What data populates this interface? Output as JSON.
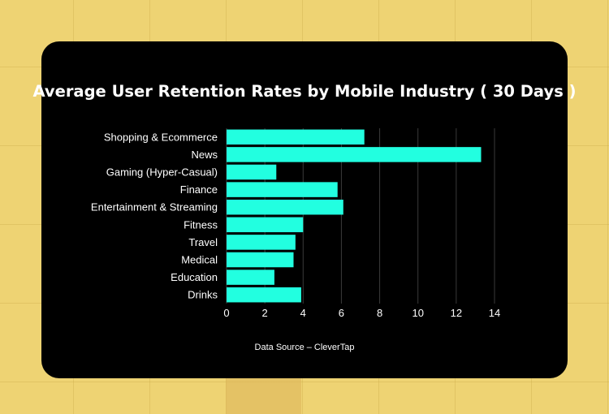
{
  "chart_data": {
    "type": "bar",
    "orientation": "horizontal",
    "title": "Average User Retention Rates by Mobile Industry ( 30 Days )",
    "categories": [
      "Shopping & Ecommerce",
      "News",
      "Gaming (Hyper-Casual)",
      "Finance",
      "Entertainment & Streaming",
      "Fitness",
      "Travel",
      "Medical",
      "Education",
      "Drinks"
    ],
    "values": [
      7.2,
      13.3,
      2.6,
      5.8,
      6.1,
      4.0,
      3.6,
      3.5,
      2.5,
      3.9
    ],
    "xticks": [
      0,
      2,
      4,
      6,
      8,
      10,
      12,
      14
    ],
    "xlim": [
      0,
      14
    ],
    "xlabel": "",
    "ylabel": "",
    "grid": true,
    "bar_color": "#22ffe0"
  },
  "footer": {
    "source": "Data Source – CleverTap"
  },
  "colors": {
    "background": "#eed373",
    "card": "#000000",
    "text": "#ffffff",
    "gridline": "#3a3a3a"
  }
}
